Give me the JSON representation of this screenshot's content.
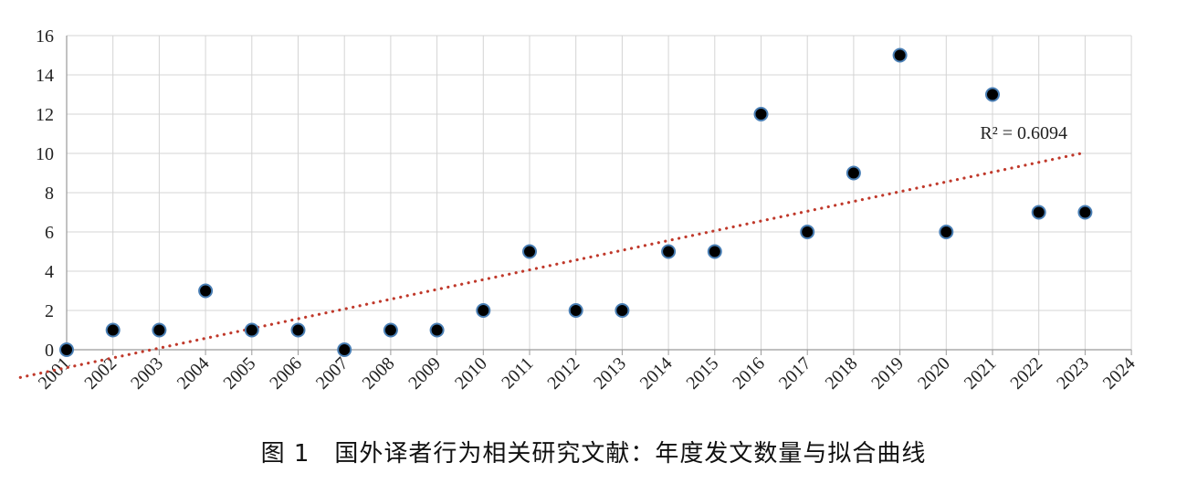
{
  "chart_data": {
    "type": "scatter",
    "caption": "图 1　国外译者行为相关研究文献：年度发文数量与拟合曲线",
    "categories": [
      "2001",
      "2002",
      "2003",
      "2004",
      "2005",
      "2006",
      "2007",
      "2008",
      "2009",
      "2010",
      "2011",
      "2012",
      "2013",
      "2014",
      "2015",
      "2016",
      "2017",
      "2018",
      "2019",
      "2020",
      "2021",
      "2022",
      "2023",
      "2024"
    ],
    "series": [
      {
        "x": [
          "2001",
          "2002",
          "2003",
          "2004",
          "2005",
          "2006",
          "2007",
          "2008",
          "2009",
          "2010",
          "2011",
          "2012",
          "2013",
          "2014",
          "2015",
          "2016",
          "2017",
          "2018",
          "2019",
          "2020",
          "2021",
          "2022",
          "2023"
        ],
        "values": [
          0,
          1,
          1,
          3,
          1,
          1,
          0,
          1,
          1,
          2,
          5,
          2,
          2,
          5,
          5,
          12,
          6,
          9,
          15,
          6,
          13,
          7,
          7
        ]
      }
    ],
    "ylim": [
      0,
      16
    ],
    "yticks": [
      "0",
      "2",
      "4",
      "6",
      "8",
      "10",
      "12",
      "14",
      "16"
    ],
    "grid": true,
    "trendline": {
      "type": "linear",
      "style": "dotted",
      "color": "#c0392b",
      "label": "R² = 0.6094"
    },
    "marker": {
      "fill": "#000000",
      "stroke": "#4a7fb5"
    },
    "xlabel": "",
    "ylabel": ""
  }
}
